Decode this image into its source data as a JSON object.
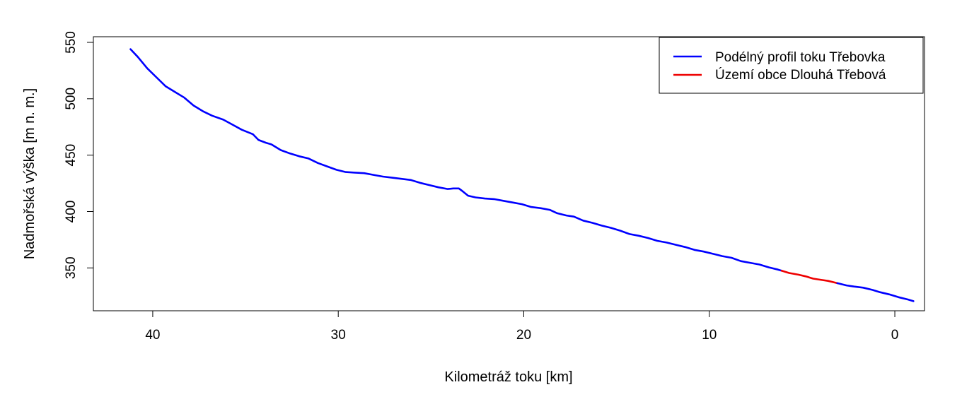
{
  "chart_data": {
    "type": "line",
    "title": "",
    "xlabel": "Kilometráž toku [km]",
    "ylabel": "Nadmořská výška [m n. m.]",
    "x_reversed": true,
    "xlim": [
      43.2,
      -1.6
    ],
    "ylim": [
      312,
      555
    ],
    "x_ticks": [
      "40",
      "30",
      "20",
      "10",
      "0"
    ],
    "y_ticks": [
      "350",
      "400",
      "450",
      "500",
      "550"
    ],
    "grid": false,
    "legend_position": "top-right",
    "series": [
      {
        "name": "Podélný profil toku Třebovka",
        "color": "#0000ff",
        "points": [
          [
            41.2,
            544
          ],
          [
            40.8,
            537
          ],
          [
            40.3,
            527
          ],
          [
            39.8,
            519
          ],
          [
            39.3,
            511
          ],
          [
            38.8,
            506
          ],
          [
            38.3,
            501
          ],
          [
            37.8,
            494
          ],
          [
            37.3,
            489
          ],
          [
            36.8,
            485
          ],
          [
            36.2,
            481.5
          ],
          [
            35.7,
            477
          ],
          [
            35.2,
            472.5
          ],
          [
            34.6,
            468.5
          ],
          [
            34.3,
            463.5
          ],
          [
            33.9,
            461
          ],
          [
            33.6,
            459.5
          ],
          [
            33.1,
            454.5
          ],
          [
            32.6,
            451.5
          ],
          [
            32.1,
            449
          ],
          [
            31.6,
            447
          ],
          [
            31.1,
            443
          ],
          [
            30.6,
            440
          ],
          [
            30.1,
            437
          ],
          [
            29.6,
            435
          ],
          [
            29.1,
            434.5
          ],
          [
            28.6,
            434
          ],
          [
            28.1,
            432.5
          ],
          [
            27.6,
            431
          ],
          [
            27.1,
            430
          ],
          [
            26.6,
            429
          ],
          [
            26.1,
            428
          ],
          [
            25.6,
            425.5
          ],
          [
            25.1,
            423.5
          ],
          [
            24.6,
            421.5
          ],
          [
            24.1,
            420
          ],
          [
            23.8,
            420.5
          ],
          [
            23.5,
            420.5
          ],
          [
            23.3,
            418
          ],
          [
            23.0,
            414
          ],
          [
            22.6,
            412.5
          ],
          [
            22.1,
            411.5
          ],
          [
            21.6,
            411
          ],
          [
            21.1,
            409.5
          ],
          [
            20.6,
            408
          ],
          [
            20.1,
            406.5
          ],
          [
            19.6,
            404
          ],
          [
            19.1,
            403
          ],
          [
            18.6,
            401.5
          ],
          [
            18.2,
            398.5
          ],
          [
            17.7,
            396.5
          ],
          [
            17.3,
            395.5
          ],
          [
            16.8,
            392
          ],
          [
            16.3,
            390
          ],
          [
            15.8,
            387.5
          ],
          [
            15.3,
            385.5
          ],
          [
            14.8,
            383
          ],
          [
            14.3,
            380
          ],
          [
            13.8,
            378.5
          ],
          [
            13.3,
            376.5
          ],
          [
            12.8,
            374
          ],
          [
            12.3,
            372.5
          ],
          [
            11.8,
            370.5
          ],
          [
            11.3,
            368.5
          ],
          [
            10.8,
            366
          ],
          [
            10.3,
            364.5
          ],
          [
            9.8,
            362.5
          ],
          [
            9.3,
            360.5
          ],
          [
            8.8,
            359
          ],
          [
            8.3,
            356
          ],
          [
            7.8,
            354.5
          ],
          [
            7.3,
            353
          ],
          [
            6.8,
            350.5
          ],
          [
            6.3,
            348.5
          ],
          [
            6.1,
            347.5
          ]
        ]
      },
      {
        "name": "Území obce Dlouhá Třebová",
        "color": "#ee0000",
        "points": [
          [
            6.1,
            347.5
          ],
          [
            5.7,
            345.5
          ],
          [
            5.2,
            344
          ],
          [
            4.8,
            342.5
          ],
          [
            4.4,
            340.5
          ],
          [
            4.0,
            339.5
          ],
          [
            3.6,
            338.5
          ],
          [
            3.1,
            336.5
          ]
        ]
      },
      {
        "name": "",
        "color": "#0000ff",
        "points": [
          [
            3.1,
            336.5
          ],
          [
            2.6,
            334.5
          ],
          [
            2.2,
            333.5
          ],
          [
            1.7,
            332.5
          ],
          [
            1.2,
            330.5
          ],
          [
            0.8,
            328.5
          ],
          [
            0.3,
            326.5
          ],
          [
            -0.2,
            324
          ],
          [
            -0.7,
            322
          ],
          [
            -1.0,
            320.5
          ]
        ]
      }
    ]
  }
}
